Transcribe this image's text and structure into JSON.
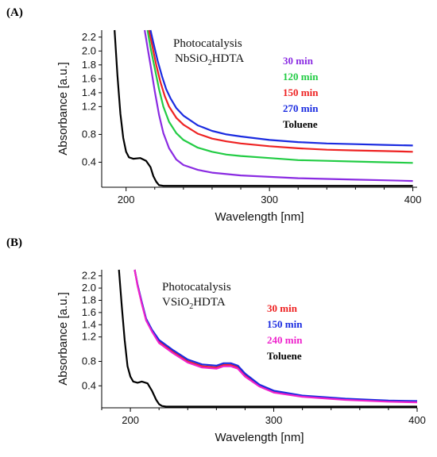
{
  "chart_data": [
    {
      "panel_label": "(A)",
      "type": "line",
      "title": "Photocatalysis",
      "subtitle": {
        "base": "NbSiO",
        "sub": "2",
        "rest": "HDTA"
      },
      "xlabel": "Wavelength [nm]",
      "ylabel": "Absorbance [a.u.]",
      "xlim": [
        183,
        403
      ],
      "ylim": [
        0.04,
        2.3
      ],
      "xticks": [
        200,
        300,
        400
      ],
      "yticks": [
        0.4,
        0.8,
        1.2,
        1.4,
        1.6,
        1.8,
        2.0,
        2.2
      ],
      "grid": false,
      "legend_position": "top-right",
      "series": [
        {
          "name": "30 min",
          "color": "#8a2be2",
          "x": [
            213,
            215,
            217,
            220,
            223,
            226,
            230,
            235,
            240,
            250,
            260,
            270,
            280,
            300,
            320,
            340,
            360,
            380,
            400
          ],
          "y": [
            2.3,
            2.05,
            1.8,
            1.42,
            1.08,
            0.82,
            0.6,
            0.44,
            0.36,
            0.29,
            0.25,
            0.23,
            0.21,
            0.19,
            0.17,
            0.16,
            0.15,
            0.14,
            0.13
          ]
        },
        {
          "name": "120 min",
          "color": "#22cc44",
          "x": [
            215,
            217,
            220,
            223,
            226,
            230,
            235,
            240,
            250,
            260,
            270,
            280,
            300,
            320,
            340,
            360,
            380,
            400
          ],
          "y": [
            2.3,
            2.05,
            1.75,
            1.45,
            1.2,
            0.98,
            0.82,
            0.72,
            0.61,
            0.55,
            0.51,
            0.49,
            0.46,
            0.43,
            0.42,
            0.41,
            0.4,
            0.39
          ]
        },
        {
          "name": "150 min",
          "color": "#ee2222",
          "x": [
            216,
            218,
            221,
            224,
            227,
            230,
            235,
            240,
            250,
            260,
            270,
            280,
            300,
            320,
            340,
            360,
            380,
            400
          ],
          "y": [
            2.3,
            2.1,
            1.8,
            1.55,
            1.35,
            1.2,
            1.04,
            0.94,
            0.81,
            0.74,
            0.7,
            0.67,
            0.63,
            0.6,
            0.58,
            0.57,
            0.56,
            0.55
          ]
        },
        {
          "name": "270 min",
          "color": "#1a2be0",
          "x": [
            217,
            219,
            222,
            225,
            228,
            231,
            235,
            240,
            250,
            260,
            270,
            280,
            300,
            320,
            340,
            360,
            380,
            400
          ],
          "y": [
            2.3,
            2.12,
            1.86,
            1.64,
            1.45,
            1.32,
            1.18,
            1.07,
            0.93,
            0.85,
            0.8,
            0.77,
            0.72,
            0.69,
            0.67,
            0.66,
            0.65,
            0.64
          ]
        },
        {
          "name": "Toluene",
          "color": "#000000",
          "x": [
            192,
            194,
            196,
            198,
            200,
            202,
            205,
            210,
            214,
            217,
            219,
            221,
            223,
            226,
            230,
            240,
            260,
            300,
            350,
            400
          ],
          "y": [
            2.3,
            1.65,
            1.1,
            0.75,
            0.55,
            0.47,
            0.45,
            0.46,
            0.42,
            0.33,
            0.2,
            0.12,
            0.07,
            0.06,
            0.06,
            0.06,
            0.06,
            0.06,
            0.06,
            0.06
          ]
        }
      ]
    },
    {
      "panel_label": "(B)",
      "type": "line",
      "title": "Photocatalysis",
      "subtitle": {
        "base": "VSiO",
        "sub": "2",
        "rest": "HDTA"
      },
      "xlabel": "Wavelength [nm]",
      "ylabel": "Absorbance [a.u.]",
      "xlim": [
        180,
        400
      ],
      "ylim": [
        0.04,
        2.3
      ],
      "xticks": [
        200,
        300,
        400
      ],
      "yticks": [
        0.4,
        0.8,
        1.2,
        1.4,
        1.6,
        1.8,
        2.0,
        2.2
      ],
      "grid": false,
      "legend_position": "center-right",
      "series": [
        {
          "name": "30 min",
          "color": "#ee2222",
          "x": [
            203,
            205,
            208,
            211,
            215,
            220,
            230,
            240,
            250,
            260,
            265,
            270,
            275,
            280,
            290,
            300,
            320,
            350,
            380,
            400
          ],
          "y": [
            2.3,
            2.05,
            1.75,
            1.48,
            1.3,
            1.12,
            0.95,
            0.8,
            0.72,
            0.7,
            0.74,
            0.74,
            0.7,
            0.57,
            0.4,
            0.3,
            0.23,
            0.18,
            0.15,
            0.14
          ]
        },
        {
          "name": "150 min",
          "color": "#1a2be0",
          "x": [
            203,
            205,
            208,
            211,
            215,
            220,
            230,
            240,
            250,
            260,
            265,
            270,
            275,
            280,
            290,
            300,
            320,
            350,
            380,
            400
          ],
          "y": [
            2.3,
            2.06,
            1.77,
            1.5,
            1.32,
            1.15,
            0.98,
            0.83,
            0.75,
            0.73,
            0.77,
            0.77,
            0.73,
            0.6,
            0.42,
            0.32,
            0.24,
            0.19,
            0.16,
            0.15
          ]
        },
        {
          "name": "240 min",
          "color": "#ee22cc",
          "x": [
            203,
            205,
            208,
            211,
            215,
            220,
            230,
            240,
            250,
            260,
            265,
            270,
            275,
            280,
            290,
            300,
            320,
            350,
            380,
            400
          ],
          "y": [
            2.3,
            2.04,
            1.74,
            1.47,
            1.29,
            1.1,
            0.93,
            0.78,
            0.7,
            0.68,
            0.72,
            0.72,
            0.68,
            0.55,
            0.39,
            0.29,
            0.22,
            0.17,
            0.14,
            0.13
          ]
        },
        {
          "name": "Toluene",
          "color": "#000000",
          "x": [
            192,
            194,
            196,
            198,
            200,
            202,
            205,
            208,
            212,
            215,
            218,
            220,
            222,
            225,
            230,
            250,
            300,
            350,
            400
          ],
          "y": [
            2.3,
            1.7,
            1.15,
            0.72,
            0.55,
            0.47,
            0.45,
            0.47,
            0.44,
            0.32,
            0.17,
            0.1,
            0.07,
            0.06,
            0.06,
            0.06,
            0.06,
            0.06,
            0.06
          ]
        }
      ]
    }
  ]
}
